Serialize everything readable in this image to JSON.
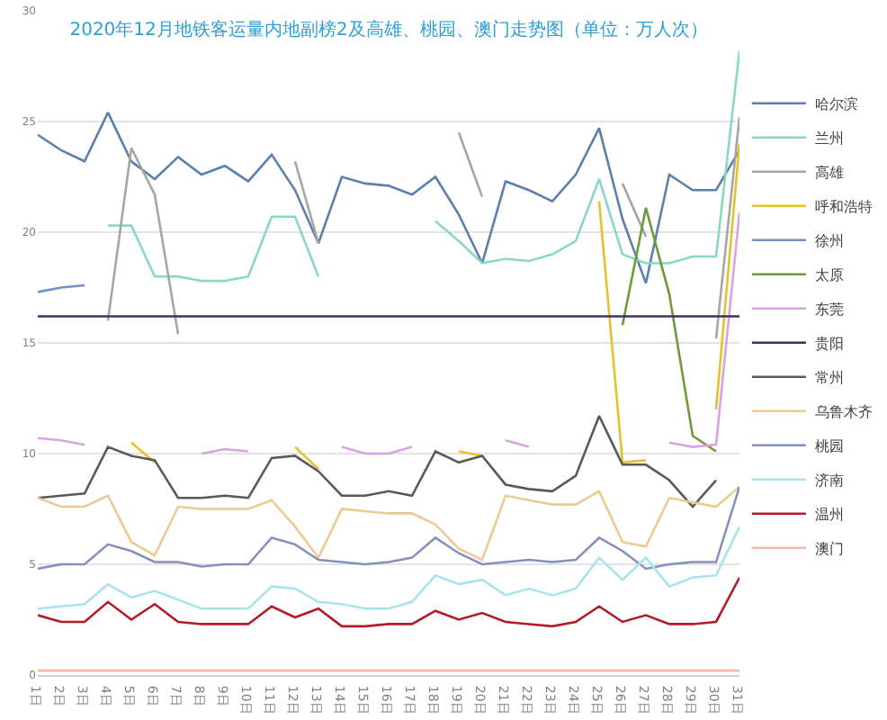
{
  "chart_data": {
    "type": "line",
    "title": "2020年12月地铁客运量内地副榜2及高雄、桃园、澳门走势图（单位：万人次）",
    "categories": [
      "1日",
      "2日",
      "3日",
      "4日",
      "5日",
      "6日",
      "7日",
      "8日",
      "9日",
      "10日",
      "11日",
      "12日",
      "13日",
      "14日",
      "15日",
      "16日",
      "17日",
      "18日",
      "19日",
      "20日",
      "21日",
      "22日",
      "23日",
      "24日",
      "25日",
      "26日",
      "27日",
      "28日",
      "29日",
      "30日",
      "31日"
    ],
    "ylim": [
      0,
      30
    ],
    "yticks": [
      0,
      5,
      10,
      15,
      20,
      25,
      30
    ],
    "grid": "y",
    "legend": "right",
    "series": [
      {
        "name": "哈尔滨",
        "color": "#5b80ad",
        "values": [
          24.4,
          23.7,
          23.2,
          25.4,
          23.2,
          22.4,
          23.4,
          22.6,
          23.0,
          22.3,
          23.5,
          21.9,
          19.5,
          22.5,
          22.2,
          22.1,
          21.7,
          22.5,
          20.8,
          18.6,
          22.3,
          21.9,
          21.4,
          22.6,
          24.7,
          20.6,
          17.7,
          22.6,
          21.9,
          21.9,
          23.7
        ]
      },
      {
        "name": "兰州",
        "color": "#88d8c8",
        "values": [
          null,
          null,
          null,
          20.3,
          20.3,
          18.0,
          18.0,
          17.8,
          17.8,
          18.0,
          20.7,
          20.7,
          18.0,
          null,
          null,
          null,
          null,
          20.5,
          19.6,
          18.6,
          18.8,
          18.7,
          19.0,
          19.6,
          22.4,
          19.0,
          18.6,
          18.6,
          18.9,
          18.9,
          28.2
        ]
      },
      {
        "name": "高雄",
        "color": "#a6a6a6",
        "values": [
          null,
          null,
          null,
          16.0,
          23.8,
          21.7,
          15.4,
          null,
          null,
          null,
          null,
          23.2,
          19.5,
          null,
          null,
          null,
          null,
          null,
          24.5,
          21.6,
          null,
          null,
          null,
          null,
          null,
          22.2,
          19.8,
          null,
          null,
          15.2,
          25.2
        ]
      },
      {
        "name": "呼和浩特",
        "color": "#e5c22b",
        "values": [
          null,
          null,
          null,
          null,
          10.5,
          9.6,
          null,
          null,
          null,
          null,
          null,
          10.3,
          9.3,
          null,
          null,
          null,
          null,
          null,
          10.1,
          9.9,
          null,
          null,
          null,
          null,
          21.4,
          9.6,
          9.7,
          null,
          null,
          12.0,
          24.0
        ]
      },
      {
        "name": "徐州",
        "color": "#6f93c8",
        "values": [
          17.3,
          17.5,
          17.6,
          null,
          null,
          null,
          null,
          null,
          null,
          null,
          null,
          null,
          null,
          null,
          null,
          null,
          null,
          null,
          null,
          null,
          null,
          null,
          null,
          null,
          null,
          null,
          null,
          null,
          null,
          null,
          null
        ]
      },
      {
        "name": "太原",
        "color": "#6f9a3a",
        "values": [
          null,
          null,
          null,
          null,
          null,
          null,
          null,
          null,
          null,
          null,
          null,
          null,
          null,
          null,
          null,
          null,
          null,
          null,
          null,
          null,
          null,
          null,
          null,
          null,
          null,
          15.8,
          21.1,
          17.2,
          10.8,
          10.1,
          null
        ]
      },
      {
        "name": "东莞",
        "color": "#d9a3e3",
        "values": [
          10.7,
          10.6,
          10.4,
          null,
          null,
          null,
          null,
          10.0,
          10.2,
          10.1,
          null,
          null,
          null,
          10.3,
          10.0,
          10.0,
          10.3,
          null,
          null,
          null,
          10.6,
          10.3,
          null,
          null,
          null,
          null,
          null,
          10.5,
          10.3,
          10.4,
          20.9
        ]
      },
      {
        "name": "贵阳",
        "color": "#3b3366",
        "values": [
          16.2,
          16.2,
          16.2,
          16.2,
          16.2,
          16.2,
          16.2,
          16.2,
          16.2,
          16.2,
          16.2,
          16.2,
          16.2,
          16.2,
          16.2,
          16.2,
          16.2,
          16.2,
          16.2,
          16.2,
          16.2,
          16.2,
          16.2,
          16.2,
          16.2,
          16.2,
          16.2,
          16.2,
          16.2,
          16.2,
          16.2
        ]
      },
      {
        "name": "常州",
        "color": "#5a5a5a",
        "values": [
          8.0,
          8.1,
          8.2,
          10.3,
          9.9,
          9.7,
          8.0,
          8.0,
          8.1,
          8.0,
          9.8,
          9.9,
          9.2,
          8.1,
          8.1,
          8.3,
          8.1,
          10.1,
          9.6,
          9.9,
          8.6,
          8.4,
          8.3,
          9.0,
          11.7,
          9.5,
          9.5,
          8.8,
          7.6,
          8.8,
          null
        ]
      },
      {
        "name": "乌鲁木齐",
        "color": "#eccb93",
        "values": [
          8.0,
          7.6,
          7.6,
          8.1,
          6.0,
          5.4,
          7.6,
          7.5,
          7.5,
          7.5,
          7.9,
          6.7,
          5.3,
          7.5,
          7.4,
          7.3,
          7.3,
          6.8,
          5.7,
          5.2,
          8.1,
          7.9,
          7.7,
          7.7,
          8.3,
          6.0,
          5.8,
          8.0,
          7.8,
          7.6,
          8.5
        ]
      },
      {
        "name": "桃园",
        "color": "#8790bd",
        "values": [
          4.8,
          5.0,
          5.0,
          5.9,
          5.6,
          5.1,
          5.1,
          4.9,
          5.0,
          5.0,
          6.2,
          5.9,
          5.2,
          5.1,
          5.0,
          5.1,
          5.3,
          6.2,
          5.5,
          5.0,
          5.1,
          5.2,
          5.1,
          5.2,
          6.2,
          5.6,
          4.8,
          5.0,
          5.1,
          5.1,
          8.5
        ]
      },
      {
        "name": "济南",
        "color": "#a9e3ee",
        "values": [
          3.0,
          3.1,
          3.2,
          4.1,
          3.5,
          3.8,
          3.4,
          3.0,
          3.0,
          3.0,
          4.0,
          3.9,
          3.3,
          3.2,
          3.0,
          3.0,
          3.3,
          4.5,
          4.1,
          4.3,
          3.6,
          3.9,
          3.6,
          3.9,
          5.3,
          4.3,
          5.3,
          4.0,
          4.4,
          4.5,
          6.7
        ]
      },
      {
        "name": "温州",
        "color": "#b31b28",
        "values": [
          2.7,
          2.4,
          2.4,
          3.3,
          2.5,
          3.2,
          2.4,
          2.3,
          2.3,
          2.3,
          3.1,
          2.6,
          3.0,
          2.2,
          2.2,
          2.3,
          2.3,
          2.9,
          2.5,
          2.8,
          2.4,
          2.3,
          2.2,
          2.4,
          3.1,
          2.4,
          2.7,
          2.3,
          2.3,
          2.4,
          4.4
        ]
      },
      {
        "name": "澳门",
        "color": "#f3b9a9",
        "values": [
          0.2,
          0.2,
          0.2,
          0.2,
          0.2,
          0.2,
          0.2,
          0.2,
          0.2,
          0.2,
          0.2,
          0.2,
          0.2,
          0.2,
          0.2,
          0.2,
          0.2,
          0.2,
          0.2,
          0.2,
          0.2,
          0.2,
          0.2,
          0.2,
          0.2,
          0.2,
          0.2,
          0.2,
          0.2,
          0.2,
          0.2
        ]
      }
    ]
  }
}
